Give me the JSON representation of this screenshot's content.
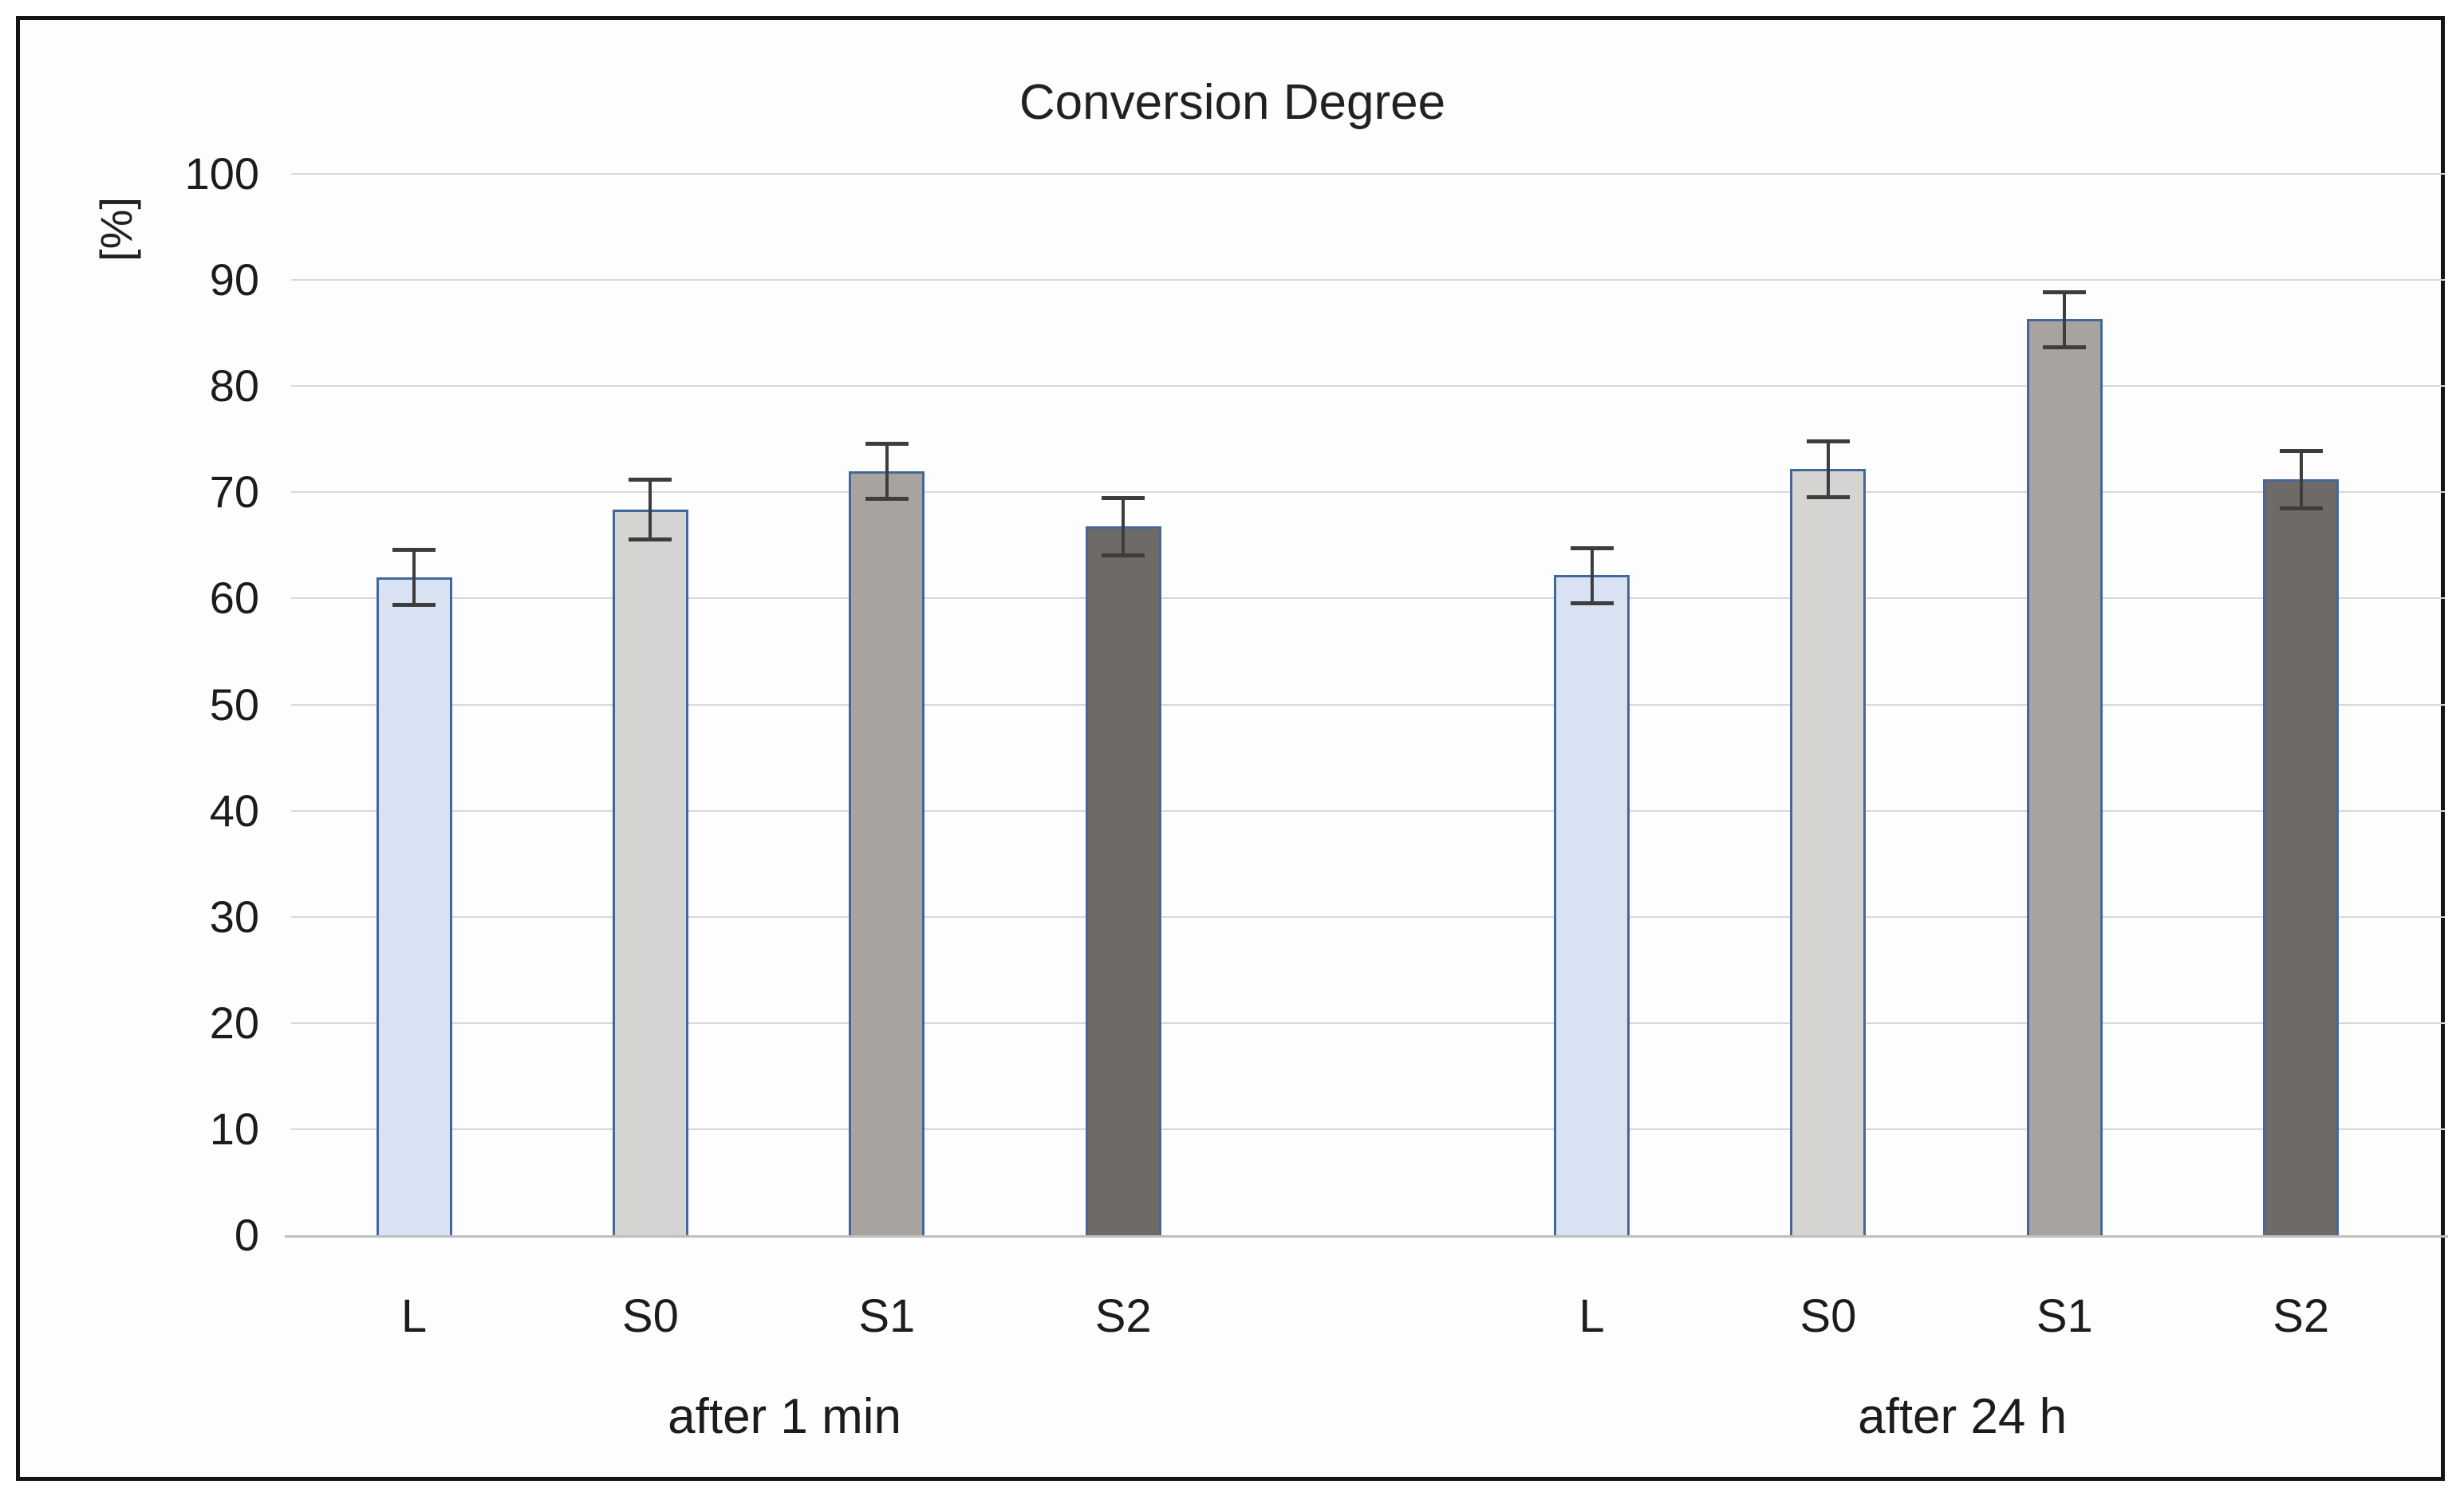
{
  "chart_data": {
    "type": "bar",
    "title": "Conversion Degree",
    "ylabel": "[%]",
    "xlabel": "",
    "ylim": [
      0,
      100
    ],
    "yticks": [
      100,
      90,
      80,
      70,
      60,
      50,
      40,
      30,
      20,
      10,
      0
    ],
    "grid": "horizontal",
    "legend": "none",
    "error_bars": true,
    "groups": [
      {
        "label": "after 1 min",
        "categories": [
          "L",
          "S0",
          "S1",
          "S2"
        ],
        "values": [
          62.0,
          68.4,
          72.0,
          66.8
        ],
        "errors": [
          2.6,
          2.8,
          2.6,
          2.7
        ]
      },
      {
        "label": "after 24 h",
        "categories": [
          "L",
          "S0",
          "S1",
          "S2"
        ],
        "values": [
          62.2,
          72.2,
          86.3,
          71.2
        ],
        "errors": [
          2.6,
          2.6,
          2.6,
          2.7
        ]
      }
    ],
    "colors": {
      "bar_fill_L": "#d9e2f3",
      "bar_fill_S0": "#d6d3d3",
      "bar_fill_S1": "#a8a39e",
      "bar_fill_S2": "#6e6a67",
      "bar_border": "#44679b",
      "error_bar": "#3d3d3d",
      "gridline": "#d8d8d8",
      "axis_line": "#bfbfbf",
      "text": "#212121"
    }
  }
}
